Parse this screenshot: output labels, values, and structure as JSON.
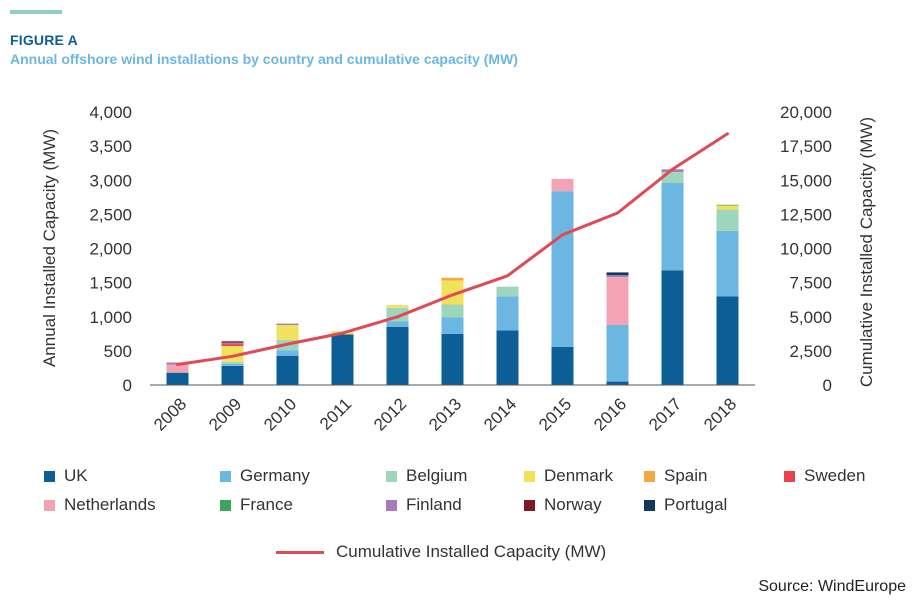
{
  "header": {
    "figure_label": "FIGURE A",
    "title": "Annual offshore wind installations by country and cumulative capacity (MW)"
  },
  "source": "Source: WindEurope",
  "chart_data": {
    "type": "bar",
    "stacked": true,
    "categories": [
      "2008",
      "2009",
      "2010",
      "2011",
      "2012",
      "2013",
      "2014",
      "2015",
      "2016",
      "2017",
      "2018"
    ],
    "ylabel": "Annual Installed Capacity (MW)",
    "y2label": "Cumulative Installed Capacity (MW)",
    "ylim": [
      0,
      4000
    ],
    "y2lim": [
      0,
      20000
    ],
    "yticks": [
      0,
      500,
      1000,
      1500,
      2000,
      2500,
      3000,
      3500,
      4000
    ],
    "y2ticks": [
      0,
      2500,
      5000,
      7500,
      10000,
      12500,
      15000,
      17500,
      20000
    ],
    "ytick_labels": [
      "0",
      "500",
      "1,000",
      "1,500",
      "2,000",
      "2,500",
      "3,000",
      "3,500",
      "4,000"
    ],
    "y2tick_labels": [
      "0",
      "2,500",
      "5,000",
      "7,500",
      "10,000",
      "12,500",
      "15,000",
      "17,500",
      "20,000"
    ],
    "grid": false,
    "series": [
      {
        "name": "UK",
        "color": "#0b5e96",
        "values": [
          180,
          280,
          430,
          740,
          850,
          750,
          800,
          560,
          50,
          1680,
          1300
        ]
      },
      {
        "name": "Germany",
        "color": "#6cb7e2",
        "values": [
          0,
          30,
          80,
          0,
          80,
          240,
          500,
          2280,
          830,
          1280,
          960
        ]
      },
      {
        "name": "Belgium",
        "color": "#9ed5bd",
        "values": [
          0,
          30,
          150,
          0,
          200,
          190,
          140,
          0,
          0,
          160,
          310
        ]
      },
      {
        "name": "Denmark",
        "color": "#f1e25c",
        "values": [
          0,
          230,
          220,
          50,
          40,
          350,
          0,
          0,
          0,
          0,
          60
        ]
      },
      {
        "name": "Spain",
        "color": "#f5a742",
        "values": [
          0,
          0,
          0,
          0,
          0,
          40,
          0,
          0,
          0,
          0,
          0
        ]
      },
      {
        "name": "Sweden",
        "color": "#e8424f",
        "values": [
          0,
          30,
          0,
          0,
          0,
          0,
          0,
          0,
          0,
          0,
          0
        ]
      },
      {
        "name": "Netherlands",
        "color": "#f3a3b3",
        "values": [
          120,
          0,
          0,
          0,
          0,
          0,
          0,
          180,
          700,
          0,
          0
        ]
      },
      {
        "name": "France",
        "color": "#3fa35b",
        "values": [
          0,
          0,
          0,
          0,
          0,
          0,
          0,
          0,
          0,
          0,
          10
        ]
      },
      {
        "name": "Finland",
        "color": "#a77ab8",
        "values": [
          30,
          20,
          20,
          0,
          0,
          0,
          0,
          0,
          30,
          40,
          0
        ]
      },
      {
        "name": "Norway",
        "color": "#7a1c24",
        "values": [
          0,
          20,
          0,
          0,
          0,
          0,
          0,
          0,
          0,
          0,
          0
        ]
      },
      {
        "name": "Portugal",
        "color": "#0e3a5c",
        "values": [
          0,
          0,
          0,
          0,
          0,
          0,
          0,
          0,
          40,
          0,
          0
        ]
      }
    ],
    "line": {
      "name": "Cumulative Installed Capacity (MW)",
      "color": "#e04a55",
      "axis": "right",
      "values": [
        1500,
        2100,
        3000,
        3800,
        5000,
        6600,
        8000,
        11000,
        12600,
        15800,
        18400
      ]
    },
    "legend_position": "bottom"
  }
}
